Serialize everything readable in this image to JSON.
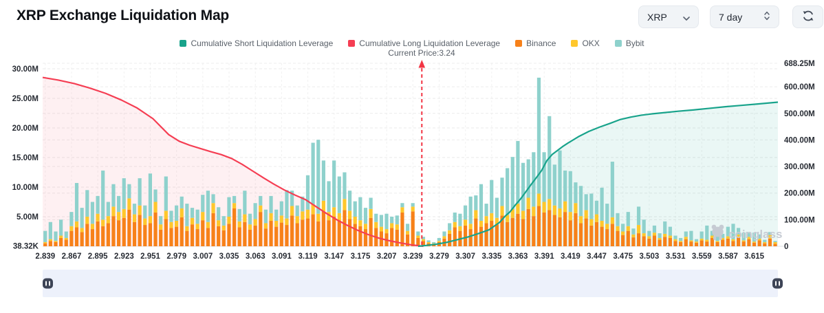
{
  "header": {
    "title": "XRP Exchange Liquidation Map",
    "coin_select": {
      "value": "XRP"
    },
    "period_select": {
      "value": "7 day"
    }
  },
  "legend": {
    "items": [
      {
        "label": "Cumulative Short Liquidation Leverage",
        "color": "#18a38b"
      },
      {
        "label": "Cumulative Long Liquidation Leverage",
        "color": "#f53e53"
      },
      {
        "label": "Binance",
        "color": "#f78119"
      },
      {
        "label": "OKX",
        "color": "#ffc72c"
      },
      {
        "label": "Bybit",
        "color": "#8ed1cc"
      }
    ]
  },
  "annotations": {
    "current_price_label": "Current Price:3.24",
    "current_price_value": 3.24
  },
  "watermark": {
    "text": "coinglass"
  },
  "chart_data": {
    "type": "combo",
    "title": "XRP Exchange Liquidation Map",
    "legend_position": "top",
    "grid": true,
    "x_tick_labels": [
      "2.839",
      "2.867",
      "2.895",
      "2.923",
      "2.951",
      "2.979",
      "3.007",
      "3.035",
      "3.063",
      "3.091",
      "3.119",
      "3.147",
      "3.175",
      "3.207",
      "3.239",
      "3.279",
      "3.307",
      "3.335",
      "3.363",
      "3.391",
      "3.419",
      "3.447",
      "3.475",
      "3.503",
      "3.531",
      "3.559",
      "3.587",
      "3.615"
    ],
    "bars_per_tick": 5,
    "left_axis_max_m": 30,
    "right_axis_max_m": 688.25,
    "left_ticks": [
      {
        "label": "30.00M",
        "m": 30
      },
      {
        "label": "25.00M",
        "m": 25
      },
      {
        "label": "20.00M",
        "m": 20
      },
      {
        "label": "15.00M",
        "m": 15
      },
      {
        "label": "10.00M",
        "m": 10
      },
      {
        "label": "5.00M",
        "m": 5
      },
      {
        "label": "38.32K",
        "m": 0.0383
      }
    ],
    "right_ticks": [
      {
        "label": "688.25M",
        "m": 688.25
      },
      {
        "label": "600.00M",
        "m": 600
      },
      {
        "label": "500.00M",
        "m": 500
      },
      {
        "label": "400.00M",
        "m": 400
      },
      {
        "label": "300.00M",
        "m": 300
      },
      {
        "label": "200.00M",
        "m": 200
      },
      {
        "label": "100.00M",
        "m": 100
      },
      {
        "label": "0",
        "m": 0
      }
    ],
    "stacked_bar_series": [
      {
        "name": "Binance",
        "color": "#f78119"
      },
      {
        "name": "OKX",
        "color": "#ffc72c"
      },
      {
        "name": "Bybit",
        "color": "#8ed1cc"
      }
    ],
    "bars_m": [
      [
        0.5,
        0.2,
        1.9
      ],
      [
        0.9,
        0.3,
        2.9
      ],
      [
        0.7,
        0.2,
        1.6
      ],
      [
        1.4,
        0.4,
        2.7
      ],
      [
        1.1,
        0.3,
        1.1
      ],
      [
        2.6,
        0.8,
        2.4
      ],
      [
        3.2,
        1.0,
        6.5
      ],
      [
        2.4,
        0.7,
        3.4
      ],
      [
        3.8,
        1.2,
        4.5
      ],
      [
        2.9,
        0.9,
        3.7
      ],
      [
        4.2,
        1.3,
        3.0
      ],
      [
        3.4,
        1.1,
        8.3
      ],
      [
        3.9,
        1.2,
        2.4
      ],
      [
        5.1,
        1.6,
        3.8
      ],
      [
        4.4,
        1.4,
        2.7
      ],
      [
        4.8,
        1.5,
        5.2
      ],
      [
        6.2,
        1.9,
        2.4
      ],
      [
        4.1,
        1.3,
        1.8
      ],
      [
        5.3,
        1.6,
        4.6
      ],
      [
        3.6,
        1.1,
        2.2
      ],
      [
        3.9,
        1.2,
        7.2
      ],
      [
        5.7,
        1.8,
        2.1
      ],
      [
        2.8,
        0.9,
        1.4
      ],
      [
        4.6,
        1.4,
        5.8
      ],
      [
        3.1,
        1.0,
        1.9
      ],
      [
        3.3,
        1.0,
        2.6
      ],
      [
        4.9,
        1.5,
        2.0
      ],
      [
        2.6,
        0.8,
        3.8
      ],
      [
        3.7,
        1.1,
        1.7
      ],
      [
        2.9,
        0.9,
        2.4
      ],
      [
        4.4,
        1.4,
        2.9
      ],
      [
        3.1,
        1.0,
        5.3
      ],
      [
        5.6,
        1.7,
        1.5
      ],
      [
        3.4,
        1.0,
        2.2
      ],
      [
        2.7,
        0.8,
        1.6
      ],
      [
        3.8,
        1.2,
        3.3
      ],
      [
        6.4,
        0.9,
        1.2
      ],
      [
        3.2,
        1.0,
        2.1
      ],
      [
        4.1,
        1.3,
        4.0
      ],
      [
        2.8,
        0.9,
        1.8
      ],
      [
        3.5,
        1.1,
        2.7
      ],
      [
        5.8,
        1.1,
        1.6
      ],
      [
        3.0,
        0.9,
        2.3
      ],
      [
        4.3,
        1.3,
        2.9
      ],
      [
        3.3,
        1.0,
        1.9
      ],
      [
        4.0,
        1.2,
        2.4
      ],
      [
        3.6,
        1.1,
        4.8
      ],
      [
        5.2,
        1.6,
        2.6
      ],
      [
        3.9,
        1.2,
        1.8
      ],
      [
        4.5,
        1.4,
        2.5
      ],
      [
        4.7,
        1.5,
        5.8
      ],
      [
        5.4,
        1.7,
        10.4
      ],
      [
        4.2,
        1.3,
        12.5
      ],
      [
        5.9,
        1.8,
        6.8
      ],
      [
        4.4,
        1.4,
        5.2
      ],
      [
        5.0,
        1.6,
        7.9
      ],
      [
        4.3,
        1.3,
        6.2
      ],
      [
        6.1,
        1.9,
        4.5
      ],
      [
        4.6,
        1.4,
        3.4
      ],
      [
        3.8,
        1.2,
        2.6
      ],
      [
        3.4,
        1.0,
        3.9
      ],
      [
        2.9,
        0.9,
        2.7
      ],
      [
        4.8,
        1.5,
        1.9
      ],
      [
        3.1,
        1.0,
        1.4
      ],
      [
        2.5,
        0.8,
        2.0
      ],
      [
        2.2,
        0.7,
        2.6
      ],
      [
        3.1,
        0.8,
        1.1
      ],
      [
        2.8,
        0.9,
        1.5
      ],
      [
        5.7,
        0.9,
        0.7
      ],
      [
        2.0,
        0.6,
        1.2
      ],
      [
        5.9,
        0.8,
        0.6
      ],
      [
        1.4,
        0.4,
        0.7
      ],
      [
        0.9,
        0.3,
        0.4
      ],
      [
        0.5,
        0.2,
        0.3
      ],
      [
        0.4,
        0.1,
        0.2
      ],
      [
        0.7,
        0.2,
        0.5
      ],
      [
        1.3,
        0.4,
        0.8
      ],
      [
        2.1,
        0.6,
        1.2
      ],
      [
        3.2,
        0.9,
        1.6
      ],
      [
        2.6,
        0.8,
        2.1
      ],
      [
        3.5,
        1.0,
        2.4
      ],
      [
        2.9,
        0.9,
        4.6
      ],
      [
        4.7,
        1.4,
        2.5
      ],
      [
        3.3,
        1.0,
        6.2
      ],
      [
        3.9,
        1.2,
        2.1
      ],
      [
        4.3,
        1.3,
        5.6
      ],
      [
        3.7,
        1.1,
        3.4
      ],
      [
        5.2,
        1.6,
        4.8
      ],
      [
        4.1,
        1.2,
        7.9
      ],
      [
        4.8,
        1.5,
        8.8
      ],
      [
        5.5,
        1.7,
        10.6
      ],
      [
        4.6,
        1.4,
        8.1
      ],
      [
        6.3,
        1.9,
        6.5
      ],
      [
        5.1,
        1.6,
        9.2
      ],
      [
        6.8,
        2.1,
        19.6
      ],
      [
        5.7,
        1.8,
        8.4
      ],
      [
        6.1,
        1.9,
        14.0
      ],
      [
        5.3,
        1.6,
        6.9
      ],
      [
        4.9,
        1.5,
        9.8
      ],
      [
        5.8,
        1.8,
        5.2
      ],
      [
        4.4,
        1.4,
        6.9
      ],
      [
        5.6,
        1.7,
        3.5
      ],
      [
        3.9,
        1.2,
        5.1
      ],
      [
        4.7,
        1.4,
        2.7
      ],
      [
        3.5,
        1.1,
        4.3
      ],
      [
        4.1,
        1.3,
        2.3
      ],
      [
        3.3,
        1.0,
        5.6
      ],
      [
        2.9,
        0.9,
        3.4
      ],
      [
        3.8,
        1.1,
        9.4
      ],
      [
        2.6,
        0.8,
        2.2
      ],
      [
        1.9,
        0.6,
        1.3
      ],
      [
        2.6,
        0.8,
        2.4
      ],
      [
        1.5,
        0.5,
        1.0
      ],
      [
        2.2,
        1.4,
        3.1
      ],
      [
        1.7,
        0.5,
        2.3
      ],
      [
        1.3,
        0.4,
        0.9
      ],
      [
        1.8,
        0.5,
        1.2
      ],
      [
        1.1,
        0.3,
        0.8
      ],
      [
        1.6,
        0.5,
        2.1
      ],
      [
        1.4,
        0.4,
        1.5
      ],
      [
        0.9,
        0.3,
        0.6
      ],
      [
        0.7,
        0.2,
        0.5
      ],
      [
        1.2,
        0.4,
        0.9
      ],
      [
        0.8,
        0.2,
        1.6
      ],
      [
        0.6,
        0.2,
        0.4
      ],
      [
        1.0,
        0.3,
        1.2
      ],
      [
        0.8,
        0.3,
        2.4
      ],
      [
        1.4,
        0.4,
        0.8
      ],
      [
        0.7,
        0.2,
        1.9
      ],
      [
        1.1,
        0.3,
        0.7
      ],
      [
        1.3,
        0.4,
        1.6
      ],
      [
        0.9,
        0.3,
        2.6
      ],
      [
        1.5,
        0.5,
        1.1
      ],
      [
        0.8,
        0.2,
        1.3
      ],
      [
        1.2,
        0.4,
        0.8
      ],
      [
        0.6,
        0.2,
        1.5
      ],
      [
        1.0,
        0.3,
        0.7
      ],
      [
        0.5,
        0.2,
        0.4
      ],
      [
        1.3,
        0.6,
        0.5
      ],
      [
        0.4,
        0.3,
        0.2
      ]
    ],
    "lines": {
      "long": {
        "name": "Cumulative Long Liquidation Leverage",
        "color": "#f53e53",
        "fill": "rgba(245,62,83,0.08)",
        "axis": "right",
        "points_m": [
          [
            0,
            635
          ],
          [
            3,
            625
          ],
          [
            6,
            612
          ],
          [
            9,
            595
          ],
          [
            12,
            575
          ],
          [
            15,
            550
          ],
          [
            18,
            520
          ],
          [
            21,
            480
          ],
          [
            24,
            420
          ],
          [
            26,
            395
          ],
          [
            28,
            380
          ],
          [
            30,
            368
          ],
          [
            32,
            356
          ],
          [
            34,
            345
          ],
          [
            36,
            330
          ],
          [
            38,
            308
          ],
          [
            40,
            283
          ],
          [
            42,
            258
          ],
          [
            44,
            234
          ],
          [
            46,
            212
          ],
          [
            48,
            193
          ],
          [
            50,
            176
          ],
          [
            52,
            150
          ],
          [
            54,
            124
          ],
          [
            56,
            100
          ],
          [
            58,
            79
          ],
          [
            60,
            60
          ],
          [
            62,
            44
          ],
          [
            64,
            31
          ],
          [
            66,
            21
          ],
          [
            68,
            13
          ],
          [
            70,
            6
          ],
          [
            72,
            1
          ],
          [
            72.5,
            0
          ]
        ]
      },
      "short": {
        "name": "Cumulative Short Liquidation Leverage",
        "color": "#18a38b",
        "fill": "rgba(24,163,139,0.09)",
        "axis": "right",
        "points_m": [
          [
            71.5,
            0
          ],
          [
            73,
            3
          ],
          [
            75,
            8
          ],
          [
            77,
            15
          ],
          [
            79,
            25
          ],
          [
            81,
            35
          ],
          [
            83,
            48
          ],
          [
            85,
            62
          ],
          [
            87,
            90
          ],
          [
            88,
            112
          ],
          [
            89,
            130
          ],
          [
            90,
            155
          ],
          [
            91,
            178
          ],
          [
            92,
            205
          ],
          [
            93,
            232
          ],
          [
            94,
            258
          ],
          [
            95,
            285
          ],
          [
            96,
            322
          ],
          [
            97,
            345
          ],
          [
            98,
            360
          ],
          [
            99,
            375
          ],
          [
            100,
            388
          ],
          [
            102,
            412
          ],
          [
            104,
            432
          ],
          [
            106,
            448
          ],
          [
            108,
            462
          ],
          [
            110,
            477
          ],
          [
            112,
            486
          ],
          [
            114,
            493
          ],
          [
            116,
            498
          ],
          [
            118,
            502
          ],
          [
            121,
            508
          ],
          [
            124,
            513
          ],
          [
            127,
            519
          ],
          [
            130,
            525
          ],
          [
            133,
            530
          ],
          [
            136,
            535
          ],
          [
            140,
            542
          ]
        ]
      }
    },
    "current_price": {
      "label": "Current Price:3.24",
      "value": 3.24,
      "bar_index": 72.2
    }
  }
}
